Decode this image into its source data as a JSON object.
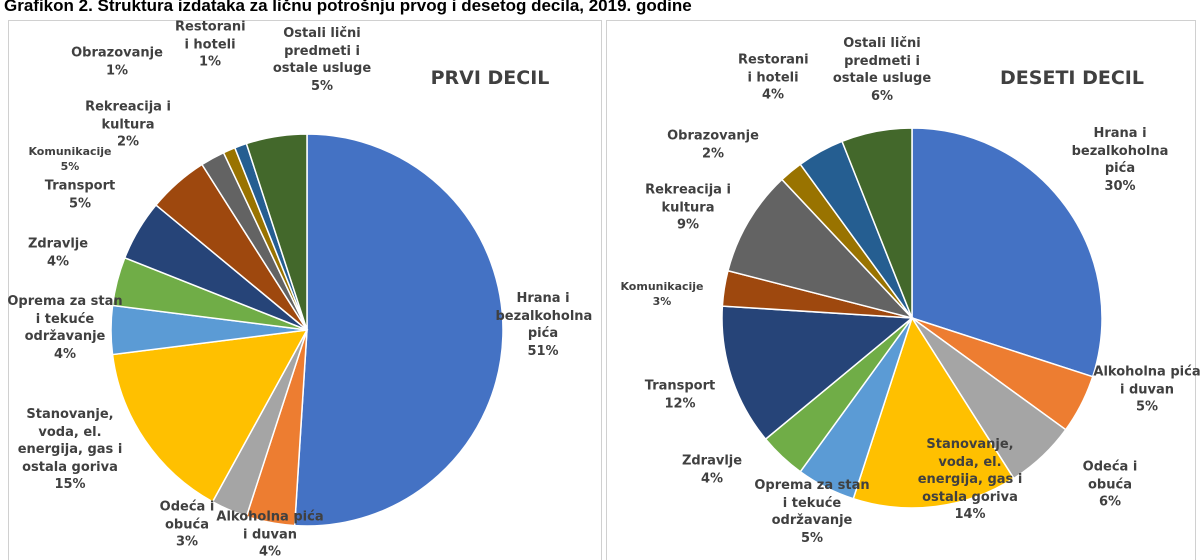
{
  "title": "Grafikon 2. Struktura izdataka za ličnu potrošnju prvog i desetog decila, 2019. godine",
  "chart_data": [
    {
      "type": "pie",
      "title": "PRVI DECIL",
      "categories": [
        "Hrana i bezalkoholna pića",
        "Alkoholna pića i duvan",
        "Odeća i obuća",
        "Stanovanje, voda, el. energija, gas i ostala goriva",
        "Oprema za stan i tekuće održavanje",
        "Zdravlje",
        "Transport",
        "Komunikacije",
        "Rekreacija i kultura",
        "Obrazovanje",
        "Restorani i hoteli",
        "Ostali lični predmeti i ostale usluge"
      ],
      "values": [
        51,
        4,
        3,
        15,
        4,
        4,
        5,
        5,
        2,
        1,
        1,
        5
      ],
      "value_labels": [
        "51%",
        "4%",
        "3%",
        "15%",
        "4%",
        "4%",
        "5%",
        "5%",
        "2%",
        "1%",
        "1%",
        "5%"
      ],
      "colors": [
        "#4472c4",
        "#ed7d31",
        "#a5a5a5",
        "#ffc000",
        "#5b9bd5",
        "#70ad47",
        "#264478",
        "#9e480e",
        "#636363",
        "#997300",
        "#255e91",
        "#43682b"
      ]
    },
    {
      "type": "pie",
      "title": "DESETI DECIL",
      "categories": [
        "Hrana i bezalkoholna pića",
        "Alkoholna pića i duvan",
        "Odeća i obuća",
        "Stanovanje, voda, el. energija, gas i ostala goriva",
        "Oprema za stan i tekuće održavanje",
        "Zdravlje",
        "Transport",
        "Komunikacije",
        "Rekreacija i kultura",
        "Obrazovanje",
        "Restorani i hoteli",
        "Ostali lični predmeti i ostale usluge"
      ],
      "values": [
        30,
        5,
        6,
        14,
        5,
        4,
        12,
        3,
        9,
        2,
        4,
        6
      ],
      "value_labels": [
        "30%",
        "5%",
        "6%",
        "14%",
        "5%",
        "4%",
        "12%",
        "3%",
        "9%",
        "2%",
        "4%",
        "6%"
      ],
      "colors": [
        "#4472c4",
        "#ed7d31",
        "#a5a5a5",
        "#ffc000",
        "#5b9bd5",
        "#70ad47",
        "#264478",
        "#9e480e",
        "#636363",
        "#997300",
        "#255e91",
        "#43682b"
      ]
    }
  ]
}
